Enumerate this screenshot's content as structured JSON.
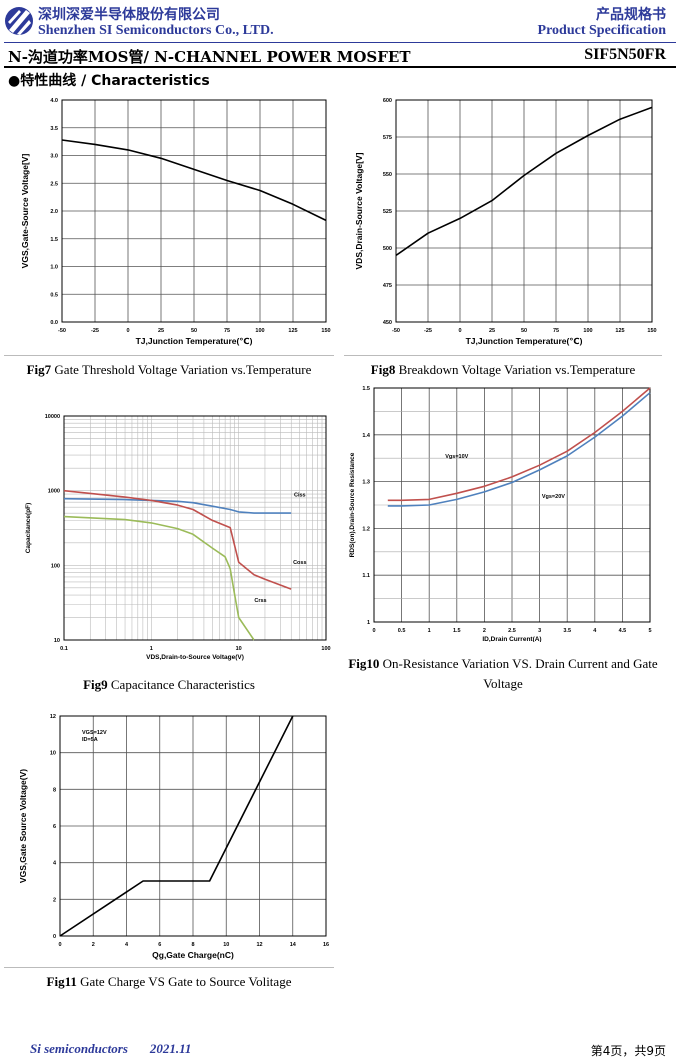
{
  "header": {
    "company_cn": "深圳深爱半导体股份有限公司",
    "company_en": "Shenzhen SI Semiconductors Co., LTD.",
    "doc_cn": "产品规格书",
    "doc_en": "Product Specification",
    "line_title": "N-沟道功率MOS管/ N-CHANNEL POWER MOSFET",
    "part_number": "SIF5N50FR"
  },
  "section": {
    "bullet": "●",
    "title": "特性曲线  / Characteristics"
  },
  "colors": {
    "brand": "#2d3a9a",
    "red_curve": "#c0504d",
    "blue_curve": "#4f81bd",
    "green_curve": "#9bbb59"
  },
  "captions": {
    "fig7": {
      "num": "Fig7",
      "text": " Gate Threshold Voltage Variation vs.Temperature"
    },
    "fig8": {
      "num": "Fig8",
      "text": " Breakdown Voltage Variation vs.Temperature"
    },
    "fig9": {
      "num": "Fig9",
      "text": " Capacitance Characteristics"
    },
    "fig10": {
      "num": "Fig10",
      "text": " On-Resistance Variation VS. Drain Current and Gate Voltage"
    },
    "fig11": {
      "num": "Fig11",
      "text": " Gate Charge VS Gate to Source Volitage"
    }
  },
  "footer": {
    "left": "Si semiconductors",
    "date": "2021.11",
    "page": "第4页，共9页"
  },
  "chart_data": [
    {
      "id": "fig7",
      "type": "line",
      "xlabel": "TJ,Junction Temperature(℃)",
      "ylabel": "VGS,Gate-Source Voltage[V]",
      "xlim": [
        -50,
        150
      ],
      "ylim": [
        0,
        4
      ],
      "xticks": [
        "-50",
        "-25",
        "0",
        "25",
        "50",
        "75",
        "100",
        "125",
        "150"
      ],
      "yticks": [
        "0.0",
        "0.5",
        "1.0",
        "1.5",
        "2.0",
        "2.5",
        "3.0",
        "3.5",
        "4.0"
      ],
      "grid": true,
      "series": [
        {
          "color": "#000000",
          "x": [
            -50,
            -25,
            0,
            25,
            50,
            75,
            100,
            125,
            150
          ],
          "y": [
            3.28,
            3.2,
            3.1,
            2.95,
            2.75,
            2.55,
            2.37,
            2.12,
            1.83
          ]
        }
      ]
    },
    {
      "id": "fig8",
      "type": "line",
      "xlabel": "TJ,Junction Temperature(℃)",
      "ylabel": "VDS,Drain-Source Voltage[V]",
      "xlim": [
        -50,
        150
      ],
      "ylim": [
        450,
        600
      ],
      "xticks": [
        "-50",
        "-25",
        "0",
        "25",
        "50",
        "75",
        "100",
        "125",
        "150"
      ],
      "yticks": [
        "450",
        "475",
        "500",
        "525",
        "550",
        "575",
        "600"
      ],
      "grid": true,
      "series": [
        {
          "color": "#000000",
          "x": [
            -50,
            -25,
            0,
            25,
            50,
            75,
            100,
            125,
            150
          ],
          "y": [
            495,
            510,
            520,
            532,
            549,
            564,
            576,
            587,
            595
          ]
        }
      ]
    },
    {
      "id": "fig9",
      "type": "line",
      "xscale": "log",
      "yscale": "log",
      "xlabel": "VDS,Drain-to-Source Voltage(V)",
      "ylabel": "Capacitance(pF)",
      "xlim": [
        0.1,
        100
      ],
      "ylim": [
        10,
        10000
      ],
      "xticks": [
        "0.1",
        "1",
        "10",
        "100"
      ],
      "yticks": [
        "10",
        "100",
        "1000",
        "10000"
      ],
      "grid": true,
      "series": [
        {
          "name": "Ciss",
          "color": "#4f81bd",
          "x": [
            0.1,
            0.5,
            1,
            2,
            3,
            5,
            8,
            10,
            15,
            20,
            40
          ],
          "y": [
            780,
            760,
            740,
            720,
            690,
            620,
            560,
            520,
            500,
            500,
            500
          ]
        },
        {
          "name": "Coss",
          "color": "#c0504d",
          "x": [
            0.1,
            0.5,
            1,
            2,
            3,
            5,
            8,
            10,
            15,
            20,
            40
          ],
          "y": [
            1000,
            820,
            740,
            640,
            560,
            400,
            320,
            110,
            75,
            65,
            48
          ]
        },
        {
          "name": "Crss",
          "color": "#9bbb59",
          "x": [
            0.1,
            0.5,
            1,
            2,
            3,
            5,
            7,
            8,
            9,
            10,
            15
          ],
          "y": [
            450,
            410,
            370,
            310,
            260,
            170,
            130,
            90,
            40,
            20,
            10
          ]
        }
      ]
    },
    {
      "id": "fig10",
      "type": "line",
      "xlabel": "ID,Drain Current(A)",
      "ylabel": "RDS(on),Drain-Source Resistance",
      "xlim": [
        0,
        5
      ],
      "ylim": [
        1,
        1.5
      ],
      "xticks": [
        "0",
        "0.5",
        "1",
        "1.5",
        "2",
        "2.5",
        "3",
        "3.5",
        "4",
        "4.5",
        "5"
      ],
      "yticks": [
        "1",
        "1.1",
        "1.2",
        "1.3",
        "1.4",
        "1.5"
      ],
      "grid": true,
      "series": [
        {
          "name": "Vgs=10V",
          "color": "#c0504d",
          "x": [
            0.25,
            0.5,
            1,
            1.5,
            2,
            2.5,
            3,
            3.5,
            4,
            4.5,
            5
          ],
          "y": [
            1.26,
            1.26,
            1.262,
            1.275,
            1.29,
            1.31,
            1.335,
            1.365,
            1.405,
            1.45,
            1.5
          ]
        },
        {
          "name": "Vgs=20V",
          "color": "#4f81bd",
          "x": [
            0.25,
            0.5,
            1,
            1.5,
            2,
            2.5,
            3,
            3.5,
            4,
            4.5,
            5
          ],
          "y": [
            1.248,
            1.248,
            1.25,
            1.262,
            1.278,
            1.298,
            1.325,
            1.355,
            1.395,
            1.44,
            1.49
          ]
        }
      ]
    },
    {
      "id": "fig11",
      "type": "line",
      "xlabel": "Qg,Gate Charge(nC)",
      "ylabel": "VGS,Gate Source Voltage(V)",
      "xlim": [
        0,
        16
      ],
      "ylim": [
        0,
        12
      ],
      "xticks": [
        "0",
        "2",
        "4",
        "6",
        "8",
        "10",
        "12",
        "14",
        "16"
      ],
      "yticks": [
        "0",
        "2",
        "4",
        "6",
        "8",
        "10",
        "12"
      ],
      "grid": true,
      "annotation": [
        "VGS=12V",
        "ID=5A"
      ],
      "series": [
        {
          "color": "#000000",
          "x": [
            0,
            5,
            9,
            14
          ],
          "y": [
            0,
            3,
            3,
            12
          ]
        }
      ]
    }
  ]
}
